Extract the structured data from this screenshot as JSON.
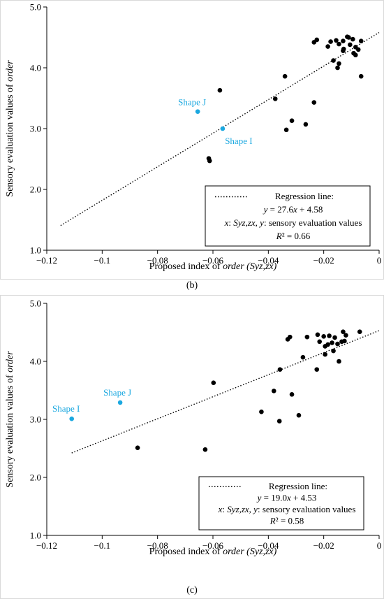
{
  "figure": {
    "panels": [
      {
        "label": "(b)",
        "chart_data": {
          "type": "scatter",
          "title": "",
          "xlabel_parts": [
            {
              "t": "Proposed index of ",
              "i": false
            },
            {
              "t": "order",
              "i": true
            },
            {
              "t": " ",
              "i": false
            },
            {
              "t": "(Syz,zx)",
              "i": true
            }
          ],
          "ylabel_parts": [
            {
              "t": "Sensory evaluation values of ",
              "i": false
            },
            {
              "t": "order",
              "i": true
            }
          ],
          "xlim": [
            -0.12,
            0
          ],
          "ylim": [
            1.0,
            5.0
          ],
          "xticks": [
            -0.12,
            -0.1,
            -0.08,
            -0.06,
            -0.04,
            -0.02,
            0
          ],
          "xtick_labels": [
            "−0.12",
            "−0.1",
            "−0.08",
            "−0.06",
            "−0.04",
            "−0.02",
            "0"
          ],
          "yticks": [
            1.0,
            2.0,
            3.0,
            4.0,
            5.0
          ],
          "ytick_labels": [
            "1.0",
            "2.0",
            "3.0",
            "4.0",
            "5.0"
          ],
          "grid": false,
          "regression": {
            "slope": 27.6,
            "intercept": 4.58,
            "x_range": [
              -0.115,
              0
            ]
          },
          "legend": {
            "placement": "bottom-right",
            "lines": [
              [
                {
                  "t": "Regression line:",
                  "i": false
                }
              ],
              [
                {
                  "t": "y",
                  "i": true
                },
                {
                  "t": " = 27.6",
                  "i": false
                },
                {
                  "t": "x",
                  "i": true
                },
                {
                  "t": " + 4.58",
                  "i": false
                }
              ],
              [
                {
                  "t": "x",
                  "i": true
                },
                {
                  "t": ": ",
                  "i": false
                },
                {
                  "t": "Syz,zx",
                  "i": true
                },
                {
                  "t": ", ",
                  "i": false
                },
                {
                  "t": "y",
                  "i": true
                },
                {
                  "t": ": sensory evaluation values",
                  "i": false
                }
              ],
              [
                {
                  "t": "R",
                  "i": true
                },
                {
                  "t": "² = 0.66",
                  "i": false
                }
              ]
            ]
          },
          "highlight_color": "#1ba8e0",
          "highlighted": [
            {
              "label": "Shape J",
              "x": -0.0655,
              "y": 3.28,
              "label_pos": "above-left"
            },
            {
              "label": "Shape I",
              "x": -0.0565,
              "y": 3.0,
              "label_pos": "below-right"
            }
          ],
          "points": [
            [
              -0.0575,
              3.63
            ],
            [
              -0.0615,
              2.51
            ],
            [
              -0.0612,
              2.47
            ],
            [
              -0.0375,
              3.49
            ],
            [
              -0.034,
              3.86
            ],
            [
              -0.0335,
              2.98
            ],
            [
              -0.0315,
              3.13
            ],
            [
              -0.0265,
              3.07
            ],
            [
              -0.0235,
              3.43
            ],
            [
              -0.0235,
              4.42
            ],
            [
              -0.0225,
              4.46
            ],
            [
              -0.0185,
              4.35
            ],
            [
              -0.0175,
              4.43
            ],
            [
              -0.0165,
              4.12
            ],
            [
              -0.0155,
              4.45
            ],
            [
              -0.015,
              4.0
            ],
            [
              -0.0145,
              4.07
            ],
            [
              -0.0145,
              4.39
            ],
            [
              -0.013,
              4.28
            ],
            [
              -0.013,
              4.44
            ],
            [
              -0.0128,
              4.31
            ],
            [
              -0.0115,
              4.51
            ],
            [
              -0.011,
              4.5
            ],
            [
              -0.0105,
              4.38
            ],
            [
              -0.0095,
              4.47
            ],
            [
              -0.0092,
              4.24
            ],
            [
              -0.0085,
              4.34
            ],
            [
              -0.0085,
              4.21
            ],
            [
              -0.0075,
              4.3
            ],
            [
              -0.0065,
              4.44
            ],
            [
              -0.0065,
              3.86
            ]
          ]
        }
      },
      {
        "label": "(c)",
        "chart_data": {
          "type": "scatter",
          "title": "",
          "xlabel_parts": [
            {
              "t": "Proposed index of ",
              "i": false
            },
            {
              "t": "order",
              "i": true
            },
            {
              "t": " ",
              "i": false
            },
            {
              "t": "(Syz,zx)",
              "i": true
            }
          ],
          "ylabel_parts": [
            {
              "t": "Sensory evaluation values of ",
              "i": false
            },
            {
              "t": "order",
              "i": true
            }
          ],
          "xlim": [
            -0.12,
            0
          ],
          "ylim": [
            1.0,
            5.0
          ],
          "xticks": [
            -0.12,
            -0.1,
            -0.08,
            -0.06,
            -0.04,
            -0.02,
            0
          ],
          "xtick_labels": [
            "−0.12",
            "−0.1",
            "−0.08",
            "−0.06",
            "−0.04",
            "−0.02",
            "0"
          ],
          "yticks": [
            1.0,
            2.0,
            3.0,
            4.0,
            5.0
          ],
          "ytick_labels": [
            "1.0",
            "2.0",
            "3.0",
            "4.0",
            "5.0"
          ],
          "grid": false,
          "regression": {
            "slope": 19.0,
            "intercept": 4.53,
            "x_range": [
              -0.111,
              0
            ]
          },
          "legend": {
            "placement": "bottom-right",
            "lines": [
              [
                {
                  "t": "Regression line:",
                  "i": false
                }
              ],
              [
                {
                  "t": "y",
                  "i": true
                },
                {
                  "t": " = 19.0",
                  "i": false
                },
                {
                  "t": "x",
                  "i": true
                },
                {
                  "t": " + 4.53",
                  "i": false
                }
              ],
              [
                {
                  "t": "x",
                  "i": true
                },
                {
                  "t": ": ",
                  "i": false
                },
                {
                  "t": "Syz,zx",
                  "i": true
                },
                {
                  "t": ", ",
                  "i": false
                },
                {
                  "t": "y",
                  "i": true
                },
                {
                  "t": ": sensory evaluation values",
                  "i": false
                }
              ],
              [
                {
                  "t": "R",
                  "i": true
                },
                {
                  "t": "² = 0.58",
                  "i": false
                }
              ]
            ]
          },
          "highlight_color": "#1ba8e0",
          "highlighted": [
            {
              "label": "Shape I",
              "x": -0.111,
              "y": 3.01,
              "label_pos": "above-left"
            },
            {
              "label": "Shape J",
              "x": -0.0935,
              "y": 3.29,
              "label_pos": "above"
            }
          ],
          "points": [
            [
              -0.0872,
              2.51
            ],
            [
              -0.0628,
              2.48
            ],
            [
              -0.0598,
              3.63
            ],
            [
              -0.0425,
              3.13
            ],
            [
              -0.038,
              3.49
            ],
            [
              -0.036,
              2.97
            ],
            [
              -0.0358,
              3.86
            ],
            [
              -0.033,
              4.38
            ],
            [
              -0.0322,
              4.42
            ],
            [
              -0.0315,
              3.43
            ],
            [
              -0.029,
              3.07
            ],
            [
              -0.0275,
              4.07
            ],
            [
              -0.026,
              4.42
            ],
            [
              -0.0225,
              3.86
            ],
            [
              -0.0222,
              4.46
            ],
            [
              -0.0215,
              4.34
            ],
            [
              -0.02,
              4.43
            ],
            [
              -0.0195,
              4.12
            ],
            [
              -0.0195,
              4.26
            ],
            [
              -0.0185,
              4.29
            ],
            [
              -0.018,
              4.44
            ],
            [
              -0.017,
              4.32
            ],
            [
              -0.0165,
              4.18
            ],
            [
              -0.016,
              4.41
            ],
            [
              -0.015,
              4.3
            ],
            [
              -0.0145,
              4.0
            ],
            [
              -0.0135,
              4.34
            ],
            [
              -0.013,
              4.51
            ],
            [
              -0.0125,
              4.35
            ],
            [
              -0.012,
              4.45
            ],
            [
              -0.007,
              4.51
            ]
          ]
        }
      }
    ]
  }
}
